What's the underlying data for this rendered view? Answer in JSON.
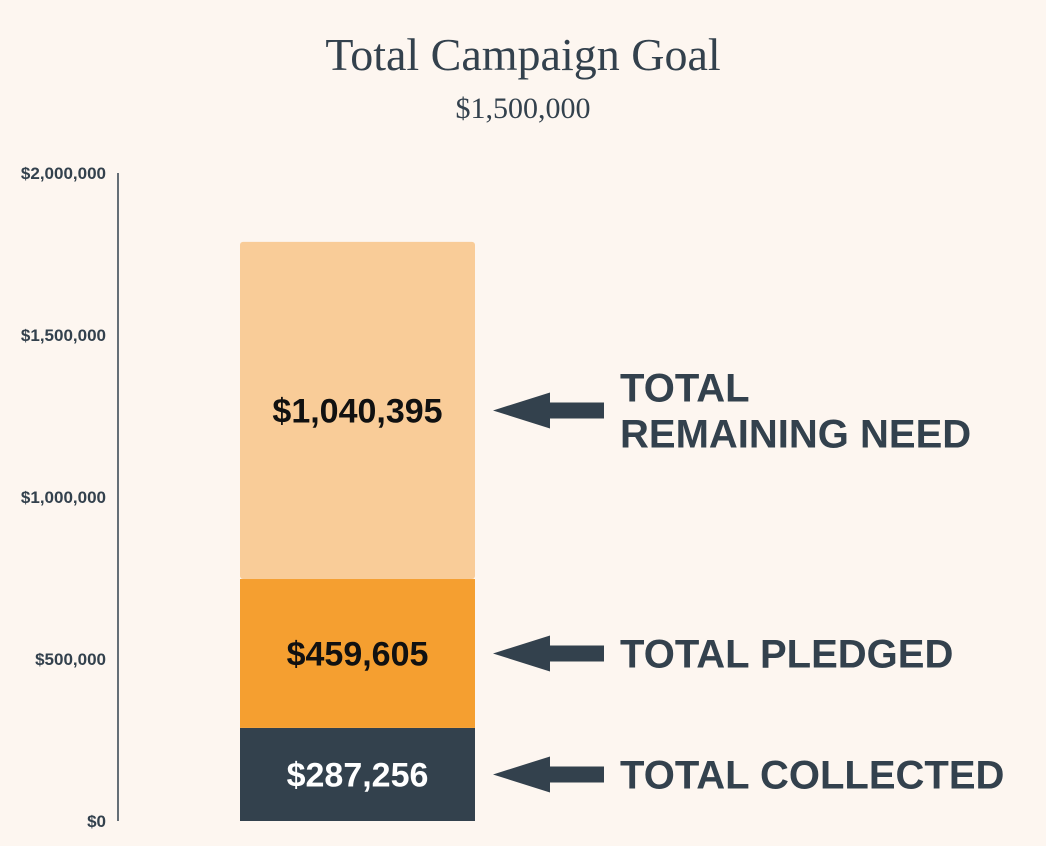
{
  "title": "Total Campaign Goal",
  "subtitle": "$1,500,000",
  "colors": {
    "background": "#fdf6f0",
    "collected": "#33414d",
    "pledged": "#f59f30",
    "remaining": "#f9cc98",
    "text_dark": "#33414d",
    "label_dark": "#111111",
    "label_light": "#ffffff"
  },
  "chart_data": {
    "type": "bar",
    "stacked": true,
    "title": "Total Campaign Goal",
    "subtitle": "$1,500,000",
    "ylim": [
      0,
      2000000
    ],
    "y_ticks": [
      0,
      500000,
      1000000,
      1500000,
      2000000
    ],
    "y_tick_labels": [
      "$0",
      "$500,000",
      "$1,000,000",
      "$1,500,000",
      "$2,000,000"
    ],
    "grid": false,
    "series": [
      {
        "key": "collected",
        "value": 287256,
        "label": "$287,256",
        "callout": [
          "TOTAL COLLECTED"
        ],
        "color": "#33414d",
        "label_color": "#ffffff"
      },
      {
        "key": "pledged",
        "value": 459605,
        "label": "$459,605",
        "callout": [
          "TOTAL PLEDGED"
        ],
        "color": "#f59f30",
        "label_color": "#111111"
      },
      {
        "key": "remaining",
        "value": 1040395,
        "label": "$1,040,395",
        "callout": [
          "TOTAL",
          "REMAINING NEED"
        ],
        "color": "#f9cc98",
        "label_color": "#111111"
      }
    ]
  }
}
